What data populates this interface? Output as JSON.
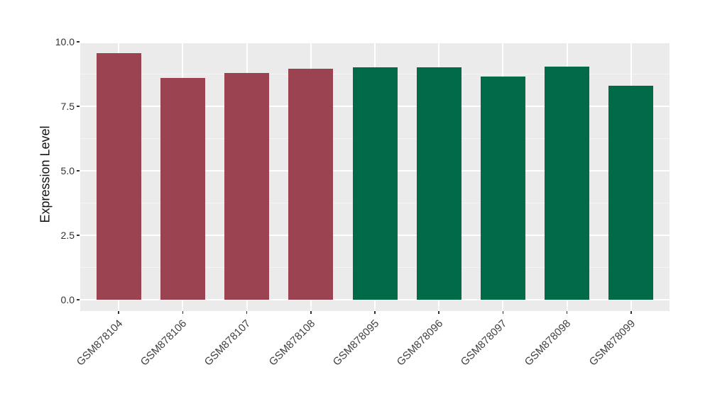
{
  "figure": {
    "background": "#FFFFFF",
    "panel_background": "#EBEBEB",
    "major_gridline_color": "#FFFFFF",
    "minor_gridline_color": "#F5F5F5",
    "tick_mark_color": "#333333"
  },
  "chart_data": {
    "type": "bar",
    "title": "",
    "xlabel": "",
    "ylabel": "Expression Level",
    "categories": [
      "GSM878104",
      "GSM878106",
      "GSM878107",
      "GSM878108",
      "GSM878095",
      "GSM878096",
      "GSM878097",
      "GSM878098",
      "GSM878099"
    ],
    "values": [
      9.55,
      8.6,
      8.8,
      8.95,
      9.0,
      9.0,
      8.65,
      9.05,
      8.3
    ],
    "bar_colors": [
      "#9B4351",
      "#9B4351",
      "#9B4351",
      "#9B4351",
      "#006A49",
      "#006A49",
      "#006A49",
      "#006A49",
      "#006A49"
    ],
    "group_colors": {
      "maroon_group": "#9B4351",
      "green_group": "#006A49"
    },
    "ylim": [
      0,
      10
    ],
    "y_major_ticks": [
      0,
      2.5,
      5,
      7.5,
      10
    ],
    "y_tick_labels": [
      "0.0",
      "2.5",
      "5.0",
      "7.5",
      "10.0"
    ],
    "y_minor_ticks": [
      1.25,
      3.75,
      6.25,
      8.75
    ],
    "x_tick_rotation_deg": 45,
    "legend": "none",
    "grid": "white major+minor horizontal lines, white major vertical lines at category centers, on gray panel"
  }
}
